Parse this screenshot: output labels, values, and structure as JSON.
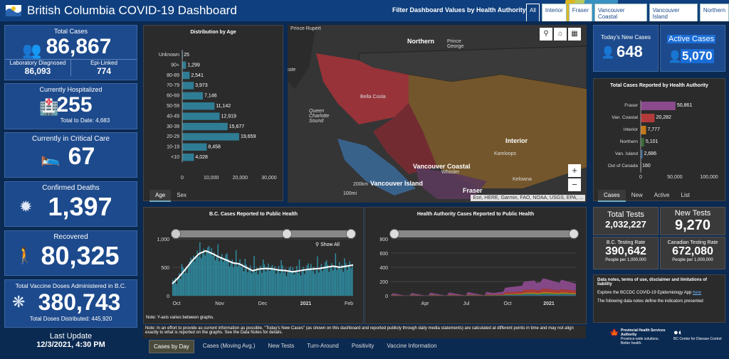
{
  "header": {
    "title": "British Columbia COVID-19 Dashboard",
    "filter_label": "Filter Dashboard Values by Health Authority:",
    "chips": [
      "All",
      "Interior",
      "Fraser",
      "Vancouver Coastal",
      "Vancouver Island",
      "Northern"
    ]
  },
  "kpis": {
    "total_cases": {
      "label": "Total Cases",
      "value": "86,867",
      "lab_label": "Laboratory Diagnosed",
      "lab_value": "86,093",
      "epi_label": "Epi-Linked",
      "epi_value": "774"
    },
    "hospitalized": {
      "label": "Currently Hospitalized",
      "value": "255",
      "sub": "Total to Date: 4,683"
    },
    "critical": {
      "label": "Currently in Critical Care",
      "value": "67"
    },
    "deaths": {
      "label": "Confirmed Deaths",
      "value": "1,397"
    },
    "recovered": {
      "label": "Recovered",
      "value": "80,325"
    },
    "vaccine": {
      "label": "Total Vaccine Doses Administered in B.C.",
      "value": "380,743",
      "sub": "Total Doses Distributed: 445,920"
    },
    "last_update": {
      "label": "Last Update",
      "value": "12/3/2021, 4:30 PM"
    }
  },
  "age_panel": {
    "title": "Distribution by Age",
    "tabs": [
      "Age",
      "Sex"
    ],
    "chart_data": {
      "type": "bar",
      "orientation": "horizontal",
      "categories": [
        "Unknown",
        "90+",
        "80-89",
        "70-79",
        "60-69",
        "50-59",
        "40-49",
        "30-39",
        "20-29",
        "10-19",
        "<10"
      ],
      "values": [
        25,
        1299,
        2541,
        3973,
        7146,
        11142,
        12919,
        15677,
        19659,
        8458,
        4028
      ],
      "value_labels": [
        "25",
        "1,299",
        "2,541",
        "3,973",
        "7,146",
        "11,142",
        "12,919",
        "15,677",
        "19,659",
        "8,458",
        "4,028"
      ],
      "xticks": [
        "0",
        "10,000",
        "20,000",
        "30,000"
      ],
      "xlim": [
        0,
        30000
      ],
      "color": "#2f7d95"
    }
  },
  "map": {
    "labels": {
      "prince_rupert": "Prince Rupert",
      "northern": "Northern",
      "prince_george": "Prince George",
      "bella_coola": "Bella Coola",
      "queen_charlotte": "Queen Charlotte Sound",
      "interior": "Interior",
      "kamloops": "Kamloops",
      "van_coastal": "Vancouver Coastal",
      "whistler": "Whistler",
      "van_island": "Vancouver Island",
      "kelowna": "Kelowna",
      "fraser": "Fraser",
      "scale_km": "200km",
      "scale_mi": "100mi",
      "cote": "cote"
    },
    "attribution": "Esri, HERE, Garmin, FAO, NOAA, USGS, EPA, ..."
  },
  "right_kpis": {
    "new_cases": {
      "label": "Today's New Cases",
      "value": "648"
    },
    "active_cases": {
      "label": "Active Cases",
      "value": "5,070"
    }
  },
  "ha_panel": {
    "title": "Total Cases Reported by Health Authority",
    "tabs": [
      "Cases",
      "New",
      "Active",
      "List"
    ],
    "chart_data": {
      "type": "bar",
      "orientation": "horizontal",
      "categories": [
        "Fraser",
        "Van. Coastal",
        "Interior",
        "Northern",
        "Van. Island",
        "Out of Canada"
      ],
      "values": [
        50861,
        20282,
        7777,
        5101,
        2686,
        160
      ],
      "value_labels": [
        "50,861",
        "20,282",
        "7,777",
        "5,101",
        "2,686",
        "160"
      ],
      "colors": [
        "#8a4a8c",
        "#b23a3a",
        "#c47a1a",
        "#3a6a3a",
        "#3a6a9a",
        "#777777"
      ],
      "xticks": [
        "0",
        "50,000",
        "100,000"
      ],
      "xlim": [
        0,
        100000
      ]
    }
  },
  "tests": {
    "total_label": "Total Tests",
    "total_value": "2,032,227",
    "new_label": "New Tests",
    "new_value": "9,270",
    "bc_rate_label": "B.C. Testing Rate",
    "bc_rate_value": "390,642",
    "bc_rate_sub": "People per 1,000,000",
    "ca_rate_label": "Canadian Testing Rate",
    "ca_rate_value": "672,080",
    "ca_rate_sub": "People per 1,000,000"
  },
  "notes": {
    "title": "Data notes, terms of use, disclaimer and limitations of liability",
    "line1": "Explore the BCCDC COVID-19 Epidemiology App ",
    "link": "here",
    "line2": "The following data notes define the indicators presented",
    "phsa": "Provincial Health Services Authority",
    "phsa_sub": "Province-wide solutions. Better health.",
    "bccdc": "BC Centre for Disease Control"
  },
  "bc_chart": {
    "title": "B.C. Cases Reported to Public Health",
    "show_all": "Show All",
    "note": "Note: Y-axis varies between graphs.",
    "chart_data": {
      "type": "bar",
      "with_moving_average_line": true,
      "xticks": [
        "Oct",
        "Nov",
        "Dec",
        "2021",
        "Feb"
      ],
      "yticks": [
        "0",
        "500",
        "1,000"
      ],
      "ylim": [
        0,
        1000
      ],
      "moving_average": [
        210,
        330,
        470,
        620,
        740,
        790,
        740,
        680,
        630,
        580,
        560,
        500,
        440,
        470,
        480,
        470,
        450,
        440,
        420,
        440,
        460,
        470,
        480,
        500,
        520,
        500,
        520,
        540
      ],
      "bar_color": "#2f8fa5",
      "line_color": "#ffffff"
    }
  },
  "ha_chart": {
    "title": "Health Authority Cases Reported to Public Health",
    "chart_data": {
      "type": "area",
      "stacked": true,
      "xticks": [
        "Apr",
        "Jul",
        "Oct",
        "2021"
      ],
      "yticks": [
        "0",
        "200",
        "400",
        "600",
        "800"
      ],
      "ylim": [
        0,
        800
      ],
      "series_colors": [
        "#3a6a9a",
        "#3a8a3a",
        "#c47a1a",
        "#b23a3a",
        "#8a4a8c"
      ]
    }
  },
  "bottom": {
    "note": "Note: In an effort to provide as current information as possible, \"Today's New Cases\" (as shown on this dashboard and reported publicly through daily media statements) are calculated at different points in time and may not align exactly to what is reported on the graphs. See the Data Notes for details.",
    "tabs": [
      "Cases by Day",
      "Cases (Moving Avg.)",
      "New Tests",
      "Turn-Around",
      "Positivity",
      "Vaccine Information"
    ]
  }
}
